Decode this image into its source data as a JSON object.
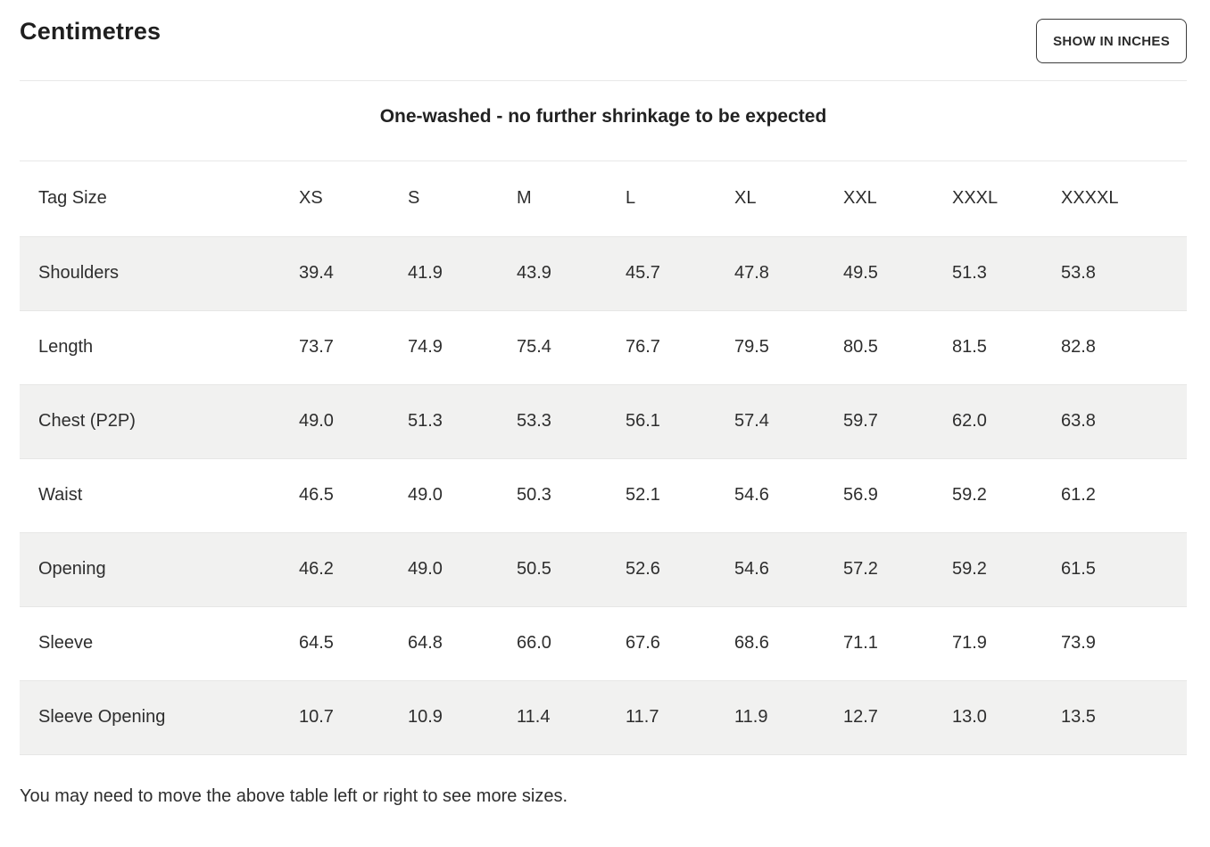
{
  "page": {
    "title": "Centimetres",
    "toggle_button_label": "SHOW IN INCHES",
    "subtitle": "One-washed - no further shrinkage to be expected",
    "footnote": "You may need to move the above table left or right to see more sizes."
  },
  "table": {
    "header": {
      "label": "Tag Size",
      "sizes": [
        "XS",
        "S",
        "M",
        "L",
        "XL",
        "XXL",
        "XXXL",
        "XXXXL"
      ]
    },
    "rows": [
      {
        "label": "Shoulders",
        "values": [
          "39.4",
          "41.9",
          "43.9",
          "45.7",
          "47.8",
          "49.5",
          "51.3",
          "53.8"
        ]
      },
      {
        "label": "Length",
        "values": [
          "73.7",
          "74.9",
          "75.4",
          "76.7",
          "79.5",
          "80.5",
          "81.5",
          "82.8"
        ]
      },
      {
        "label": "Chest (P2P)",
        "values": [
          "49.0",
          "51.3",
          "53.3",
          "56.1",
          "57.4",
          "59.7",
          "62.0",
          "63.8"
        ]
      },
      {
        "label": "Waist",
        "values": [
          "46.5",
          "49.0",
          "50.3",
          "52.1",
          "54.6",
          "56.9",
          "59.2",
          "61.2"
        ]
      },
      {
        "label": "Opening",
        "values": [
          "46.2",
          "49.0",
          "50.5",
          "52.6",
          "54.6",
          "57.2",
          "59.2",
          "61.5"
        ]
      },
      {
        "label": "Sleeve",
        "values": [
          "64.5",
          "64.8",
          "66.0",
          "67.6",
          "68.6",
          "71.1",
          "71.9",
          "73.9"
        ]
      },
      {
        "label": "Sleeve Opening",
        "values": [
          "10.7",
          "10.9",
          "11.4",
          "11.7",
          "11.9",
          "12.7",
          "13.0",
          "13.5"
        ]
      }
    ]
  },
  "colors": {
    "row_alt_bg": "#f1f1f0",
    "divider": "#e8e8e8",
    "text": "#2e2e2e",
    "button_border": "#3c3c3c"
  }
}
